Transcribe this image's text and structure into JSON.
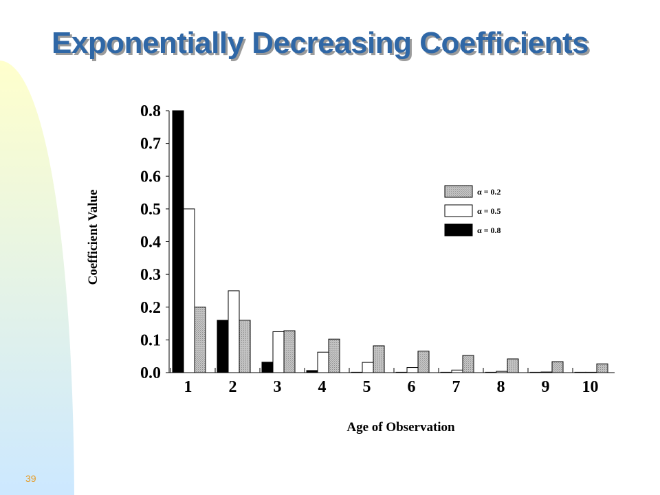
{
  "slide": {
    "title": "Exponentially Decreasing Coefficients",
    "page_number": "39"
  },
  "colors": {
    "title": "#2f67a6",
    "page_number": "#e69a22",
    "band_top": "#ffffcc",
    "band_bottom": "#cce8ff",
    "series_alpha_0_2": "#b9b9b9",
    "series_alpha_0_5": "#ffffff",
    "series_alpha_0_8": "#000000"
  },
  "chart_data": {
    "type": "bar",
    "xlabel": "Age of Observation",
    "ylabel": "Coefficient Value",
    "ylim": [
      0,
      0.8
    ],
    "yticks": [
      "0.0",
      "0.1",
      "0.2",
      "0.3",
      "0.4",
      "0.5",
      "0.6",
      "0.7",
      "0.8"
    ],
    "categories": [
      "1",
      "2",
      "3",
      "4",
      "5",
      "6",
      "7",
      "8",
      "9",
      "10"
    ],
    "grid": false,
    "legend_position": "right",
    "series": [
      {
        "name": "α = 0.8",
        "color": "#000000",
        "values": [
          0.8,
          0.16,
          0.032,
          0.0064,
          0.00128,
          0.000256,
          5.12e-05,
          1.024e-05,
          2.048e-06,
          4.096e-07
        ]
      },
      {
        "name": "α = 0.5",
        "color": "#ffffff",
        "values": [
          0.5,
          0.25,
          0.125,
          0.0625,
          0.03125,
          0.015625,
          0.0078125,
          0.00390625,
          0.001953125,
          0.0009765625
        ]
      },
      {
        "name": "α = 0.2",
        "color": "#b9b9b9",
        "values": [
          0.2,
          0.16,
          0.128,
          0.1024,
          0.08192,
          0.065536,
          0.0524288,
          0.04194304,
          0.033554432,
          0.0268435456
        ]
      }
    ],
    "legend_order": [
      2,
      1,
      0
    ]
  }
}
